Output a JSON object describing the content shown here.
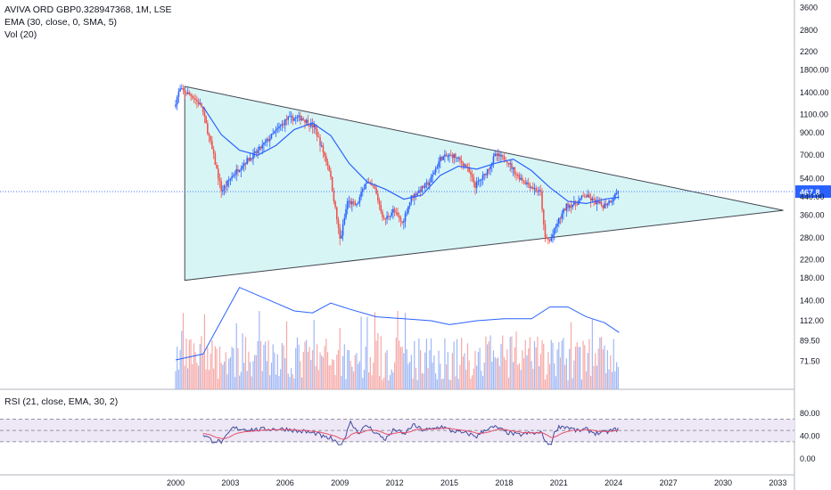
{
  "chart_data": {
    "type": "line",
    "title": "AVIVA ORD GBP0.328947368, 1M, LSE",
    "indicators": [
      "EMA (30, close, 0, SMA, 5)",
      "Vol (20)"
    ],
    "rsi_label": "RSI (21, close, EMA, 30, 2)",
    "x_ticks": [
      "2000",
      "2003",
      "2006",
      "2009",
      "2012",
      "2015",
      "2018",
      "2021",
      "2024",
      "2027",
      "2030",
      "2033"
    ],
    "price_ticks": [
      "3600",
      "2800",
      "2200",
      "1800.00",
      "1400.00",
      "1100.00",
      "900.00",
      "700.00",
      "540.00",
      "440.00",
      "360.00",
      "280.00",
      "220.00",
      "180.00",
      "140.00",
      "112.00",
      "89.50",
      "71.50"
    ],
    "rsi_ticks": [
      "80.00",
      "40.00",
      "0.00"
    ],
    "last_price": "467.8",
    "price_scale": "log",
    "colors": {
      "up": "#26a69a",
      "down": "#ef5350",
      "candle_up": "#2962ff",
      "candle_down": "#ef5350",
      "ema": "#2962ff",
      "triangle_fill": "#d7f5f5",
      "rsi": "#434a9e",
      "rsi_ma": "#e8506a",
      "rsi_band": "#ede7f6",
      "last_price": "#2962ff"
    },
    "ema_series": {
      "name": "EMA",
      "x": [
        2001.5,
        2002.5,
        2003.5,
        2004.5,
        2005.5,
        2006.5,
        2007.5,
        2008.5,
        2009.5,
        2010.5,
        2011.5,
        2012.5,
        2013.5,
        2014.5,
        2015.5,
        2016.5,
        2017.5,
        2018.5,
        2019.5,
        2020.5,
        2021.5,
        2022.5,
        2023.5,
        2024.3
      ],
      "values": [
        1200,
        880,
        740,
        700,
        780,
        930,
        1000,
        870,
        640,
        520,
        480,
        430,
        450,
        560,
        620,
        600,
        640,
        670,
        590,
        490,
        420,
        410,
        430,
        440
      ]
    },
    "triangle": {
      "apex_top": {
        "x": 2000.5,
        "price": 1500
      },
      "apex_bottom": {
        "x": 2000.5,
        "price": 175
      },
      "apex_right": {
        "x": 2033.3,
        "price": 380
      }
    },
    "volume_ema": [
      [
        2000.0,
        75
      ],
      [
        2001.5,
        78
      ],
      [
        2002.5,
        95
      ],
      [
        2003.5,
        112
      ],
      [
        2004.5,
        108
      ],
      [
        2005.5,
        104
      ],
      [
        2006.5,
        100
      ],
      [
        2007.5,
        99
      ],
      [
        2008.5,
        104
      ],
      [
        2009.5,
        101
      ],
      [
        2011,
        97
      ],
      [
        2012.5,
        96
      ],
      [
        2014,
        95
      ],
      [
        2015,
        93
      ],
      [
        2016.5,
        95
      ],
      [
        2018,
        96
      ],
      [
        2019.5,
        96
      ],
      [
        2020.5,
        102
      ],
      [
        2021.5,
        102
      ],
      [
        2022.5,
        97
      ],
      [
        2023.5,
        94
      ],
      [
        2024.3,
        89
      ]
    ]
  }
}
